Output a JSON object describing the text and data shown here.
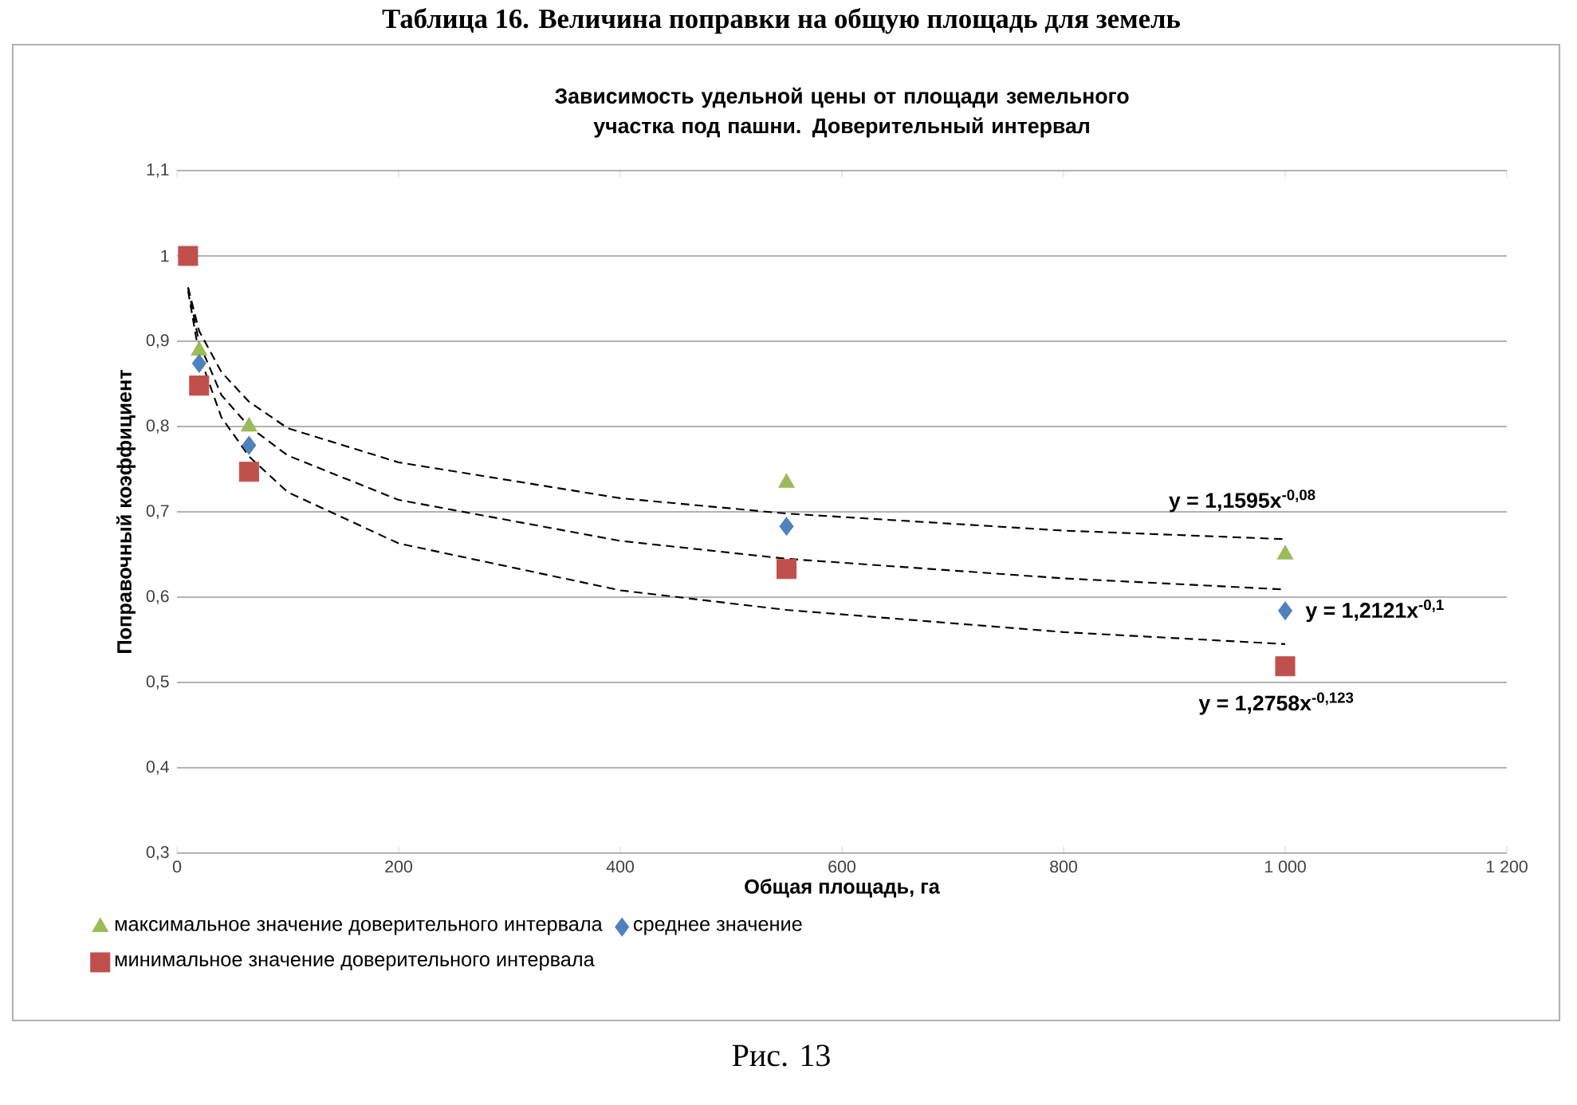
{
  "chart_data": {
    "type": "scatter",
    "title": "Зависимость удельной цены от площади земельного участка под пашни. Доверительный интервал",
    "xlabel": "Общая площадь, га",
    "ylabel": "Поправочный коэффициент",
    "xlim": [
      0,
      1200
    ],
    "ylim": [
      0.3,
      1.1
    ],
    "xticks": [
      0,
      200,
      400,
      600,
      800,
      {
        "value": 1000,
        "label": "1 000"
      },
      {
        "value": 1200,
        "label": "1 200"
      }
    ],
    "yticks": [
      {
        "value": 0.3,
        "label": "0,3"
      },
      {
        "value": 0.4,
        "label": "0,4"
      },
      {
        "value": 0.5,
        "label": "0,5"
      },
      {
        "value": 0.6,
        "label": "0,6"
      },
      {
        "value": 0.7,
        "label": "0,7"
      },
      {
        "value": 0.8,
        "label": "0,8"
      },
      {
        "value": 0.9,
        "label": "0,9"
      },
      {
        "value": 1,
        "label": "1"
      },
      {
        "value": 1.1,
        "label": "1,1"
      }
    ],
    "grid": "y",
    "legend": "bottom",
    "series": [
      {
        "name": "максимальное значение доверительного интервала",
        "color": "#9bbb59",
        "marker": "triangle",
        "x": [
          20,
          65,
          550,
          1000
        ],
        "values": [
          0.889,
          0.8,
          0.734,
          0.65
        ]
      },
      {
        "name": "среднее значение",
        "color": "#4f81bd",
        "marker": "diamond",
        "x": [
          20,
          65,
          550,
          1000
        ],
        "values": [
          0.874,
          0.778,
          0.683,
          0.584
        ]
      },
      {
        "name": "минимальное значение доверительного интервала",
        "color": "#c0504d",
        "marker": "square",
        "x": [
          10,
          20,
          65,
          550,
          1000
        ],
        "values": [
          1.0,
          0.848,
          0.747,
          0.633,
          0.519
        ]
      },
      {
        "type": "line",
        "color": "#000000",
        "marker": "none",
        "line_style": "dashed",
        "x": [
          10,
          20,
          40,
          65,
          100,
          200,
          400,
          550,
          800,
          1000
        ],
        "values": [
          0.963,
          0.912,
          0.864,
          0.829,
          0.798,
          0.758,
          0.716,
          0.698,
          0.678,
          0.668
        ]
      },
      {
        "type": "line",
        "color": "#000000",
        "marker": "none",
        "line_style": "dashed",
        "x": [
          10,
          20,
          40,
          65,
          100,
          200,
          400,
          550,
          800,
          1000
        ],
        "values": [
          0.963,
          0.898,
          0.837,
          0.8,
          0.766,
          0.714,
          0.666,
          0.645,
          0.622,
          0.609
        ]
      },
      {
        "type": "line",
        "color": "#000000",
        "marker": "none",
        "line_style": "dashed",
        "x": [
          10,
          20,
          40,
          65,
          100,
          200,
          400,
          550,
          800,
          1000
        ],
        "values": [
          0.959,
          0.884,
          0.811,
          0.765,
          0.723,
          0.663,
          0.608,
          0.585,
          0.559,
          0.545
        ]
      }
    ],
    "annotations": [
      "Таблица 16. Величина поправки на общую площадь для земель",
      "y = 1,1595x$^{-0,08}$",
      "y = 1,2121x$^{-0,1}$",
      "y = 1,2758x$^{-0,123}$",
      "Рис. 13"
    ]
  }
}
